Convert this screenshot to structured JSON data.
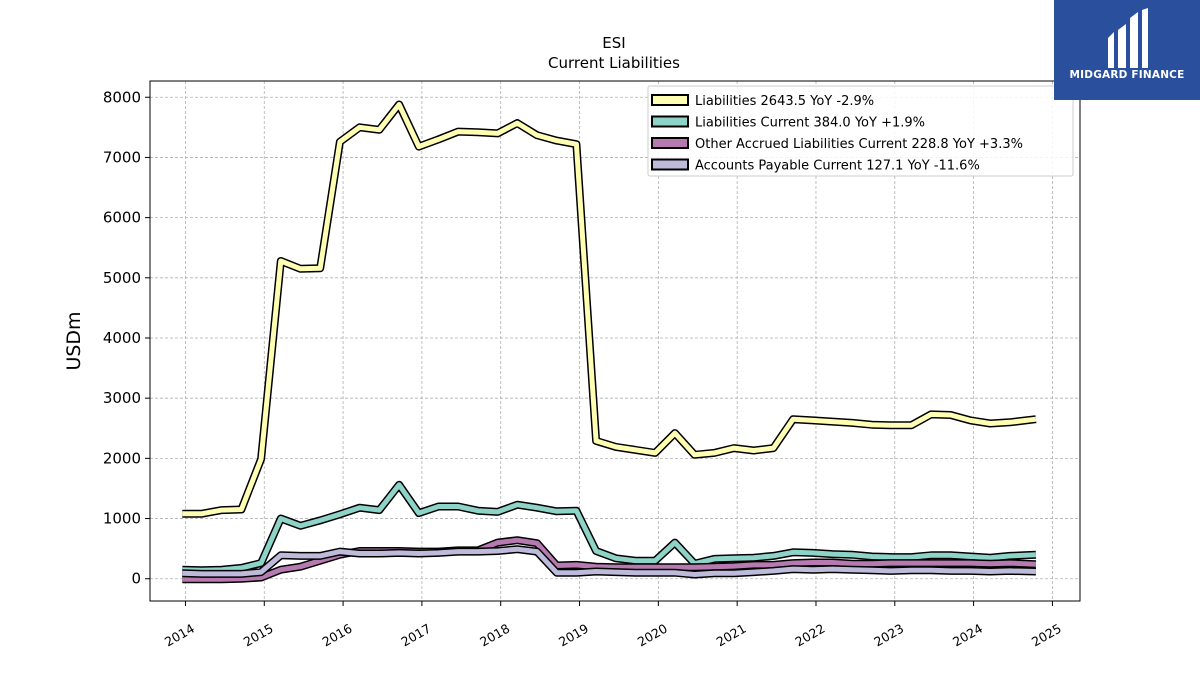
{
  "brand": {
    "name": "MIDGARD FINANCE",
    "bg_color": "#2a4f9c"
  },
  "chart_data": {
    "type": "area",
    "title": "ESI",
    "subtitle": "Current  Liabilities",
    "ylabel": "USDm",
    "xlabel": "",
    "xlim": [
      2013.55,
      2025.35
    ],
    "ylim": [
      -370,
      8270
    ],
    "yticks": [
      0,
      1000,
      2000,
      3000,
      4000,
      5000,
      6000,
      7000,
      8000
    ],
    "xticks": [
      2014,
      2015,
      2016,
      2017,
      2018,
      2019,
      2020,
      2021,
      2022,
      2023,
      2024,
      2025
    ],
    "grid": true,
    "legend_position": "top-right",
    "x": [
      2013.96,
      2014.21,
      2014.46,
      2014.71,
      2014.96,
      2015.21,
      2015.46,
      2015.71,
      2015.96,
      2016.21,
      2016.46,
      2016.71,
      2016.96,
      2017.21,
      2017.46,
      2017.71,
      2017.96,
      2018.21,
      2018.46,
      2018.71,
      2018.96,
      2019.21,
      2019.46,
      2019.71,
      2019.96,
      2020.21,
      2020.46,
      2020.71,
      2020.96,
      2021.21,
      2021.46,
      2021.71,
      2021.96,
      2022.21,
      2022.46,
      2022.71,
      2022.96,
      2023.21,
      2023.46,
      2023.71,
      2023.96,
      2024.21,
      2024.46,
      2024.79
    ],
    "series": [
      {
        "name": "Liabilities",
        "legend": "Liabilities  2643.5 YoY -2.9%",
        "color": "#ffffb3",
        "values": [
          1080,
          1080,
          1140,
          1150,
          1990,
          5280,
          5150,
          5160,
          7260,
          7500,
          7460,
          7880,
          7180,
          7300,
          7430,
          7420,
          7400,
          7570,
          7370,
          7280,
          7220,
          2290,
          2190,
          2140,
          2090,
          2420,
          2060,
          2090,
          2170,
          2130,
          2170,
          2650,
          2630,
          2610,
          2590,
          2560,
          2550,
          2550,
          2730,
          2720,
          2630,
          2580,
          2600,
          2650
        ]
      },
      {
        "name": "Liabilities Current",
        "legend": "Liabilities Current  384.0 YoY +1.9%",
        "color": "#8dd3c7",
        "values": [
          150,
          140,
          150,
          180,
          260,
          1000,
          880,
          970,
          1070,
          1180,
          1140,
          1560,
          1090,
          1200,
          1200,
          1130,
          1110,
          1230,
          1180,
          1120,
          1130,
          460,
          340,
          300,
          300,
          600,
          250,
          330,
          340,
          350,
          380,
          440,
          430,
          410,
          400,
          370,
          360,
          360,
          390,
          390,
          370,
          350,
          380,
          400
        ]
      },
      {
        "name": "Other Accrued Liabilities Current",
        "legend": "Other Accrued Liabilities Current  228.8 YoY +3.3%",
        "color": "#b67ab1",
        "values": [
          -10,
          -10,
          -10,
          0,
          20,
          150,
          200,
          300,
          400,
          460,
          460,
          460,
          450,
          450,
          470,
          470,
          600,
          640,
          590,
          220,
          230,
          200,
          190,
          190,
          190,
          190,
          190,
          200,
          210,
          230,
          230,
          260,
          270,
          270,
          250,
          250,
          260,
          260,
          260,
          260,
          260,
          250,
          260,
          240
        ]
      },
      {
        "name": "Accounts Payable Current",
        "legend": "Accounts Payable Current  127.1 YoY -11.6%",
        "color": "#bebada",
        "values": [
          90,
          80,
          80,
          80,
          110,
          390,
          380,
          380,
          450,
          420,
          420,
          430,
          420,
          430,
          450,
          450,
          460,
          490,
          450,
          100,
          100,
          120,
          110,
          100,
          100,
          100,
          70,
          90,
          90,
          110,
          130,
          160,
          150,
          160,
          150,
          140,
          130,
          140,
          140,
          130,
          130,
          120,
          130,
          120
        ]
      }
    ]
  }
}
